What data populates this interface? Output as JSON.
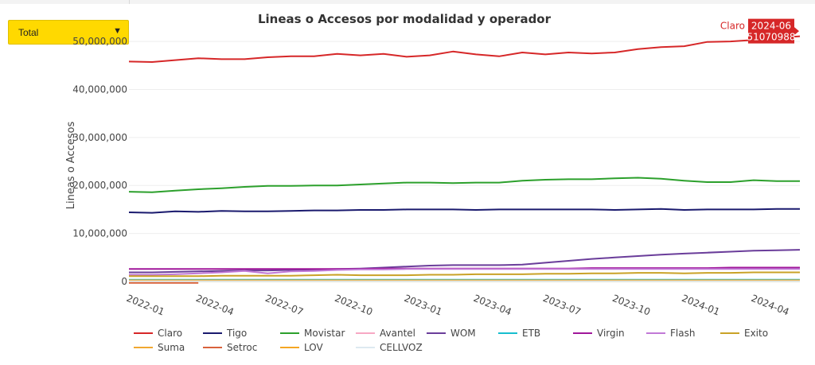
{
  "filter": {
    "selected": "Total"
  },
  "chart_data": {
    "type": "line",
    "title": "Lineas o Accesos por modalidad y operador",
    "ylabel": "Lineas o Accesos",
    "xlabel": "",
    "ylim": [
      -1000000,
      52000000
    ],
    "yticks": [
      0,
      10000000,
      20000000,
      30000000,
      40000000,
      50000000
    ],
    "ytick_labels": [
      "0",
      "10,000,000",
      "20,000,000",
      "30,000,000",
      "40,000,000",
      "50,000,000"
    ],
    "xtick_labels": [
      "2022-01",
      "2022-04",
      "2022-07",
      "2022-10",
      "2023-01",
      "2023-04",
      "2023-07",
      "2023-10",
      "2024-01",
      "2024-04"
    ],
    "x": [
      "2022-01",
      "2022-02",
      "2022-03",
      "2022-04",
      "2022-05",
      "2022-06",
      "2022-07",
      "2022-08",
      "2022-09",
      "2022-10",
      "2022-11",
      "2022-12",
      "2023-01",
      "2023-02",
      "2023-03",
      "2023-04",
      "2023-05",
      "2023-06",
      "2023-07",
      "2023-08",
      "2023-09",
      "2023-10",
      "2023-11",
      "2023-12",
      "2024-01",
      "2024-02",
      "2024-03",
      "2024-04",
      "2024-05",
      "2024-06"
    ],
    "series": [
      {
        "name": "Claro",
        "color": "#d62728",
        "values": [
          45800000,
          45700000,
          46100000,
          46500000,
          46300000,
          46300000,
          46700000,
          46900000,
          46900000,
          47400000,
          47100000,
          47400000,
          46800000,
          47100000,
          47900000,
          47300000,
          46900000,
          47700000,
          47300000,
          47700000,
          47500000,
          47700000,
          48400000,
          48800000,
          49000000,
          49900000,
          50000000,
          50300000,
          50700000,
          51070988
        ]
      },
      {
        "name": "Tigo",
        "color": "#1a1a6e",
        "values": [
          14400000,
          14300000,
          14600000,
          14500000,
          14700000,
          14600000,
          14600000,
          14700000,
          14800000,
          14800000,
          14900000,
          14900000,
          15000000,
          15000000,
          15000000,
          14900000,
          15000000,
          15000000,
          15000000,
          15000000,
          15000000,
          14900000,
          15000000,
          15100000,
          14900000,
          15000000,
          15000000,
          15000000,
          15100000,
          15100000
        ]
      },
      {
        "name": "Movistar",
        "color": "#2ca02c",
        "values": [
          18700000,
          18600000,
          18900000,
          19200000,
          19400000,
          19700000,
          19900000,
          19900000,
          20000000,
          20000000,
          20200000,
          20400000,
          20600000,
          20600000,
          20500000,
          20600000,
          20600000,
          21000000,
          21200000,
          21300000,
          21300000,
          21500000,
          21600000,
          21400000,
          21000000,
          20700000,
          20700000,
          21100000,
          20900000,
          20900000
        ]
      },
      {
        "name": "Avantel",
        "color": "#f7a8c4",
        "values": [
          150000,
          150000,
          150000,
          150000,
          150000,
          150000,
          150000,
          150000,
          150000,
          150000,
          150000,
          150000,
          150000,
          150000,
          150000,
          150000,
          150000,
          150000,
          150000,
          150000,
          150000,
          150000,
          150000,
          150000,
          150000,
          150000,
          150000,
          150000,
          150000,
          150000
        ]
      },
      {
        "name": "WOM",
        "color": "#6a3d9a",
        "values": [
          1900000,
          1900000,
          2000000,
          2100000,
          2200000,
          2300000,
          2300000,
          2400000,
          2500000,
          2600000,
          2700000,
          2900000,
          3100000,
          3300000,
          3400000,
          3400000,
          3400000,
          3500000,
          3900000,
          4300000,
          4700000,
          5000000,
          5300000,
          5600000,
          5800000,
          6000000,
          6200000,
          6400000,
          6500000,
          6600000
        ]
      },
      {
        "name": "ETB",
        "color": "#17becf",
        "values": [
          350000,
          350000,
          350000,
          350000,
          350000,
          350000,
          350000,
          350000,
          350000,
          350000,
          350000,
          350000,
          350000,
          350000,
          350000,
          350000,
          350000,
          350000,
          350000,
          350000,
          350000,
          350000,
          350000,
          350000,
          350000,
          350000,
          350000,
          350000,
          350000,
          350000
        ]
      },
      {
        "name": "Virgin",
        "color": "#a0179a",
        "values": [
          2600000,
          2600000,
          2600000,
          2600000,
          2600000,
          2600000,
          2600000,
          2600000,
          2600000,
          2600000,
          2600000,
          2700000,
          2700000,
          2700000,
          2700000,
          2700000,
          2700000,
          2700000,
          2700000,
          2700000,
          2800000,
          2800000,
          2800000,
          2800000,
          2800000,
          2800000,
          2900000,
          2900000,
          2900000,
          2900000
        ]
      },
      {
        "name": "Flash",
        "color": "#c179d6",
        "values": [
          1400000,
          1400000,
          1500000,
          1700000,
          1900000,
          2200000,
          1700000,
          2100000,
          2200000,
          2400000,
          2500000,
          2500000,
          2600000,
          2600000,
          2600000,
          2600000,
          2600000,
          2600000,
          2600000,
          2600000,
          2600000,
          2600000,
          2600000,
          2600000,
          2600000,
          2600000,
          2600000,
          2600000,
          2600000,
          2600000
        ]
      },
      {
        "name": "Exito",
        "color": "#c9a227",
        "values": [
          1100000,
          1100000,
          1100000,
          1100000,
          1200000,
          1200000,
          1200000,
          1200000,
          1300000,
          1400000,
          1300000,
          1300000,
          1300000,
          1400000,
          1400000,
          1500000,
          1500000,
          1500000,
          1600000,
          1600000,
          1700000,
          1700000,
          1800000,
          1800000,
          1700000,
          1800000,
          1800000,
          1900000,
          1900000,
          1900000
        ]
      },
      {
        "name": "Suma",
        "color": "#f0a830",
        "values": [
          250000,
          250000,
          250000,
          250000,
          250000,
          250000,
          250000,
          250000,
          250000,
          250000,
          250000,
          250000,
          250000,
          250000,
          250000,
          250000,
          250000,
          250000,
          250000,
          250000,
          250000,
          250000,
          250000,
          250000,
          250000,
          250000,
          250000,
          250000,
          250000,
          250000
        ]
      },
      {
        "name": "Setroc",
        "color": "#d9623b",
        "values": [
          -200000,
          -200000,
          -200000,
          -200000,
          null,
          null,
          null,
          null,
          null,
          null,
          null,
          null,
          null,
          null,
          null,
          null,
          null,
          null,
          null,
          null,
          null,
          null,
          null,
          null,
          null,
          null,
          null,
          null,
          null,
          null
        ]
      },
      {
        "name": "LOV",
        "color": "#f5a623",
        "values": [
          50000,
          50000,
          50000,
          50000,
          50000,
          50000,
          50000,
          50000,
          50000,
          50000,
          50000,
          50000,
          50000,
          50000,
          50000,
          50000,
          50000,
          50000,
          50000,
          50000,
          50000,
          50000,
          50000,
          50000,
          50000,
          50000,
          50000,
          50000,
          50000,
          50000
        ]
      },
      {
        "name": "CELLVOZ",
        "color": "#dde9f0",
        "values": [
          30000,
          30000,
          30000,
          30000,
          30000,
          30000,
          30000,
          30000,
          30000,
          30000,
          30000,
          30000,
          30000,
          30000,
          30000,
          30000,
          30000,
          30000,
          30000,
          30000,
          30000,
          30000,
          30000,
          30000,
          30000,
          30000,
          30000,
          30000,
          30000,
          30000
        ]
      }
    ],
    "tooltip": {
      "series": "Claro",
      "date": "2024-06",
      "value": "51070988"
    }
  }
}
